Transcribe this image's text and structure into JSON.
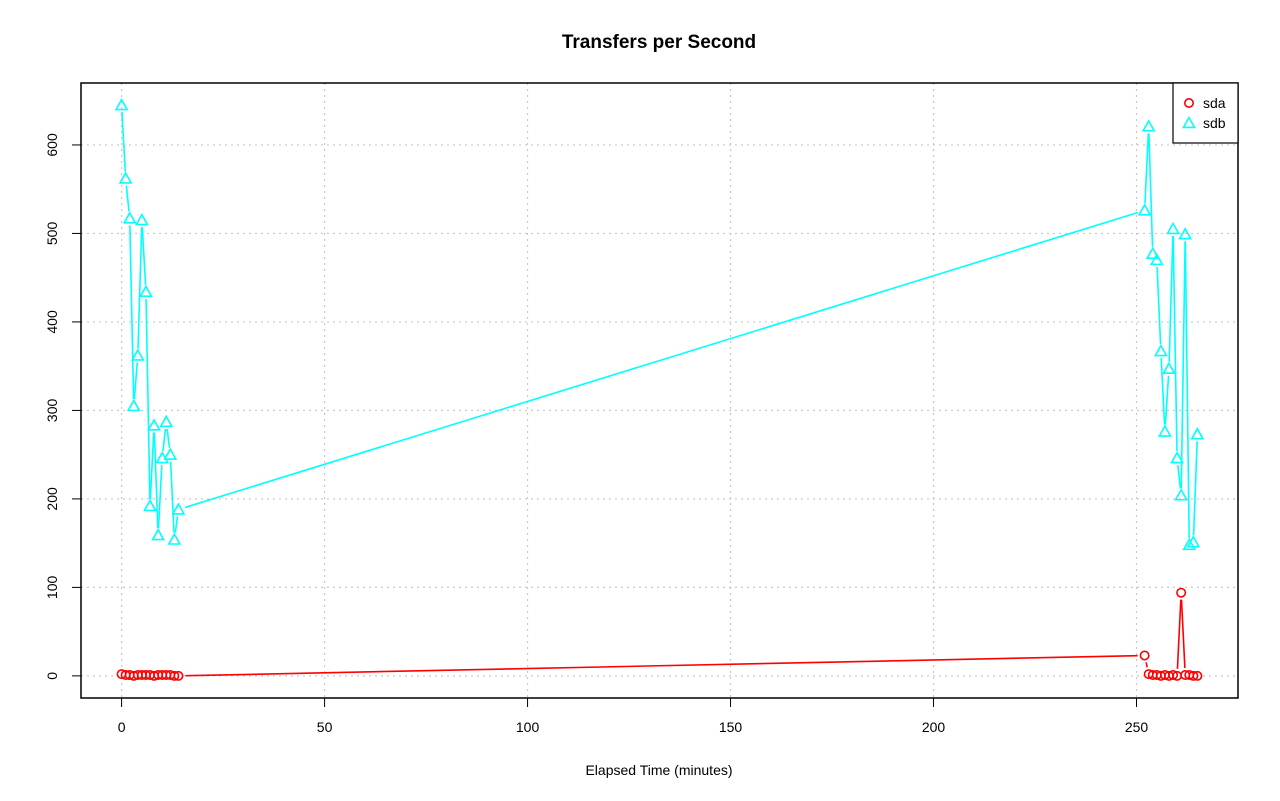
{
  "chart_data": {
    "type": "line",
    "title": "Transfers per Second",
    "xlabel": "Elapsed Time (minutes)",
    "ylabel": "",
    "xlim": [
      -10,
      275
    ],
    "ylim": [
      -25,
      670
    ],
    "x_ticks": [
      0,
      50,
      100,
      150,
      200,
      250
    ],
    "y_ticks": [
      0,
      100,
      200,
      300,
      400,
      500,
      600
    ],
    "grid": true,
    "legend_position": "top-right",
    "series": [
      {
        "name": "sda",
        "color": "#ff0000",
        "marker": "circle",
        "x": [
          0,
          1,
          2,
          3,
          4,
          5,
          6,
          7,
          8,
          9,
          10,
          11,
          12,
          13,
          14,
          252,
          253,
          254,
          255,
          256,
          257,
          258,
          259,
          260,
          261,
          262,
          263,
          264,
          265
        ],
        "y": [
          2,
          1,
          1,
          0,
          1,
          1,
          1,
          1,
          0,
          1,
          1,
          1,
          1,
          0,
          0,
          23,
          2,
          1,
          1,
          0,
          1,
          0,
          1,
          0,
          94,
          1,
          1,
          0,
          0
        ]
      },
      {
        "name": "sdb",
        "color": "#00ffff",
        "marker": "triangle",
        "x": [
          0,
          1,
          2,
          3,
          4,
          5,
          6,
          7,
          8,
          9,
          10,
          11,
          12,
          13,
          14,
          252,
          253,
          254,
          255,
          256,
          257,
          258,
          259,
          260,
          261,
          262,
          263,
          264,
          265
        ],
        "y": [
          645,
          562,
          517,
          305,
          362,
          515,
          434,
          192,
          283,
          159,
          246,
          287,
          250,
          154,
          188,
          526,
          621,
          477,
          470,
          367,
          276,
          347,
          505,
          246,
          204,
          499,
          148,
          151,
          273
        ]
      }
    ]
  }
}
